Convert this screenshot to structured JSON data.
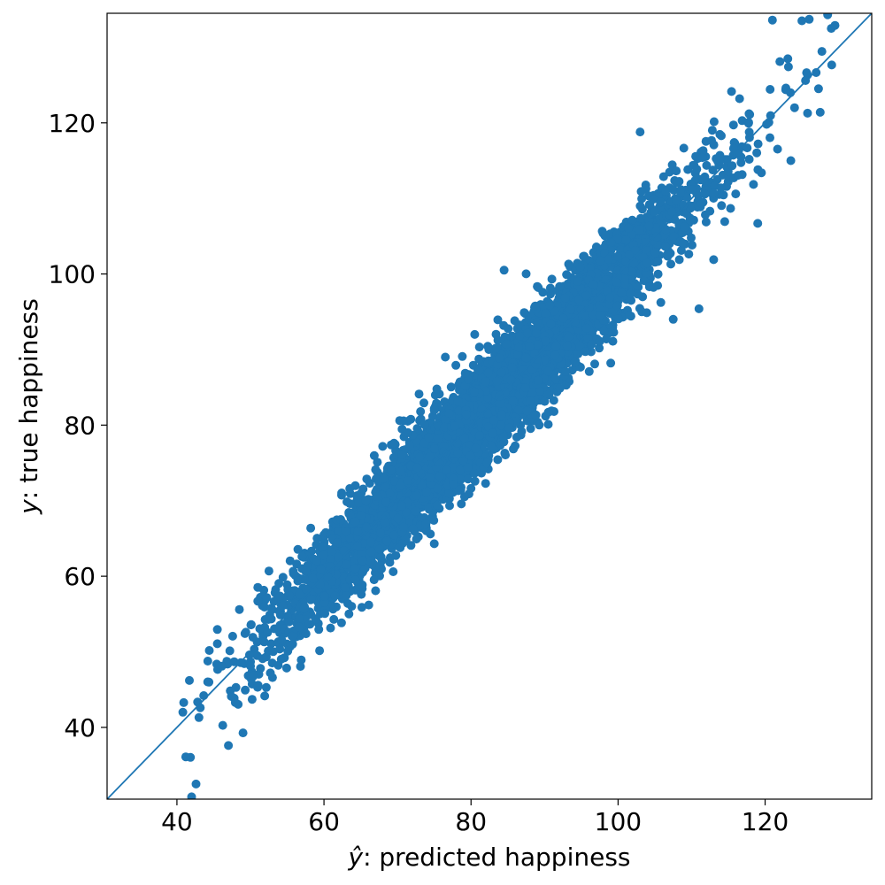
{
  "chart_data": {
    "type": "scatter",
    "xlabel_symbol": "ŷ",
    "xlabel_text": ": predicted happiness",
    "ylabel_symbol": "y",
    "ylabel_text": ": true happiness",
    "xlim": [
      30.5,
      134.5
    ],
    "ylim": [
      30.5,
      134.5
    ],
    "xticks": [
      40,
      60,
      80,
      100,
      120
    ],
    "yticks": [
      40,
      60,
      80,
      100,
      120
    ],
    "reference_line": {
      "type": "identity",
      "description": "y = x"
    },
    "grid": false,
    "legend": "none",
    "marker_color": "#1f77b4",
    "line_color": "#1f77b4",
    "approx_point_count": 5000,
    "distribution": {
      "x_mean": 82,
      "x_std": 14,
      "x_range": [
        40.5,
        129.5
      ],
      "residual_std": 3.3
    },
    "outliers": [
      {
        "x": 40.8,
        "y": 42.0
      },
      {
        "x": 41.2,
        "y": 36.1
      },
      {
        "x": 42.0,
        "y": 30.8
      },
      {
        "x": 42.6,
        "y": 32.5
      },
      {
        "x": 47.0,
        "y": 37.6
      },
      {
        "x": 41.7,
        "y": 46.2
      },
      {
        "x": 43.0,
        "y": 41.3
      },
      {
        "x": 47.4,
        "y": 44.1
      },
      {
        "x": 48.5,
        "y": 55.6
      },
      {
        "x": 51.0,
        "y": 56.7
      },
      {
        "x": 57.0,
        "y": 62.6
      },
      {
        "x": 60.5,
        "y": 60.0
      },
      {
        "x": 70.3,
        "y": 80.6
      },
      {
        "x": 75.0,
        "y": 64.3
      },
      {
        "x": 76.5,
        "y": 89.0
      },
      {
        "x": 80.5,
        "y": 92.0
      },
      {
        "x": 84.5,
        "y": 100.5
      },
      {
        "x": 87.5,
        "y": 88.9
      },
      {
        "x": 90.5,
        "y": 80.1
      },
      {
        "x": 99.0,
        "y": 88.2
      },
      {
        "x": 103.0,
        "y": 118.8
      },
      {
        "x": 107.5,
        "y": 94.0
      },
      {
        "x": 111.0,
        "y": 95.4
      },
      {
        "x": 113.0,
        "y": 101.9
      },
      {
        "x": 116.0,
        "y": 110.6
      },
      {
        "x": 119.0,
        "y": 106.7
      },
      {
        "x": 119.5,
        "y": 113.4
      },
      {
        "x": 121.0,
        "y": 133.6
      },
      {
        "x": 122.0,
        "y": 128.1
      },
      {
        "x": 123.5,
        "y": 115.0
      },
      {
        "x": 125.0,
        "y": 133.5
      },
      {
        "x": 126.0,
        "y": 133.7
      },
      {
        "x": 127.5,
        "y": 121.4
      },
      {
        "x": 128.5,
        "y": 134.3
      },
      {
        "x": 129.0,
        "y": 132.5
      },
      {
        "x": 129.5,
        "y": 132.9
      },
      {
        "x": 124.0,
        "y": 122.0
      },
      {
        "x": 125.5,
        "y": 125.6
      }
    ]
  }
}
